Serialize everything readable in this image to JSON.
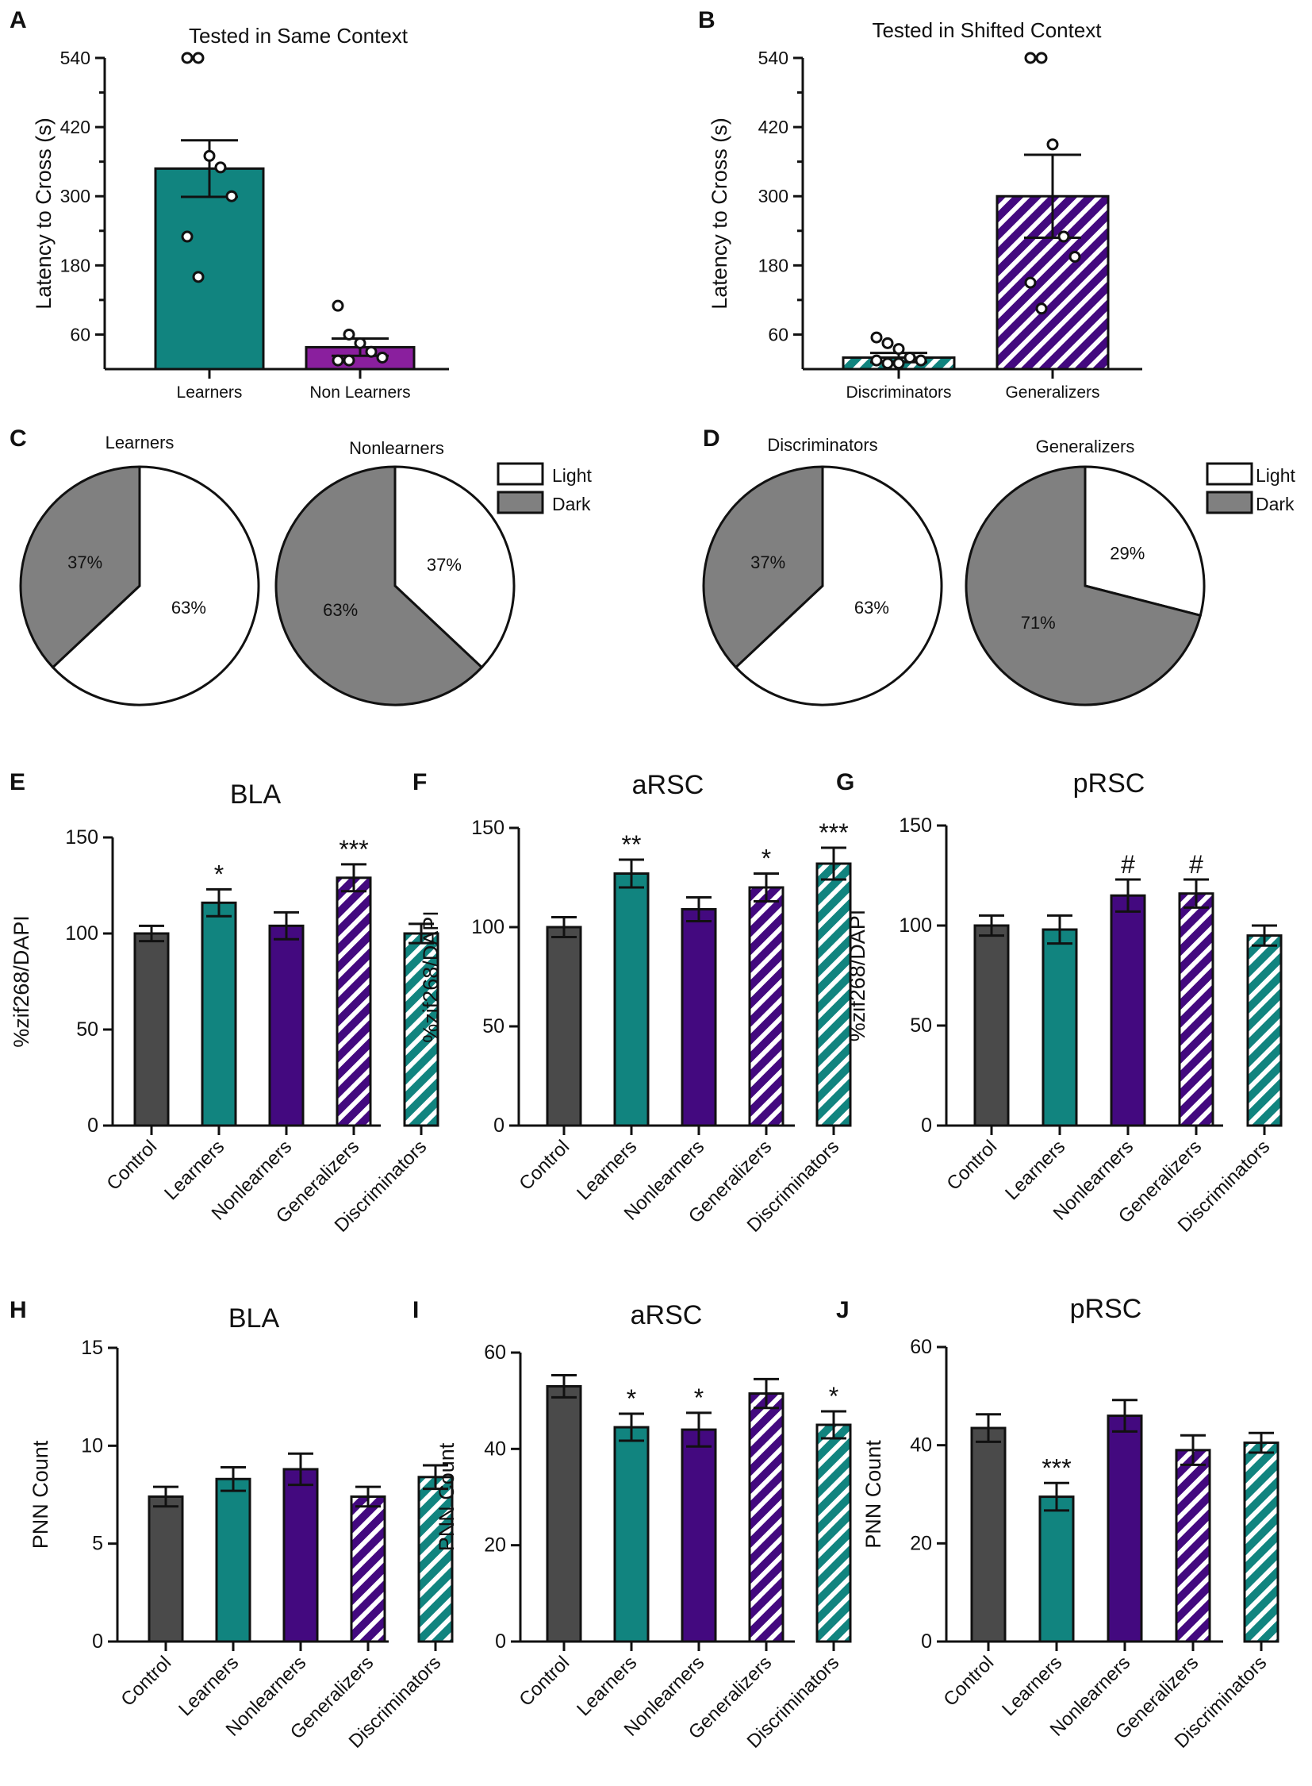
{
  "colors": {
    "control": "#4a4a4a",
    "teal": "#11847f",
    "purple": "#43097f",
    "purple_mid": "#8a1f9e",
    "dark_slice": "#808080",
    "light_slice": "#ffffff",
    "axis": "#111111"
  },
  "legend": {
    "light": "Light",
    "dark": "Dark"
  },
  "chart_data": [
    {
      "id": "A",
      "letter": "A",
      "type": "bar",
      "title": "Tested in Same Context",
      "ylabel": "Latency to Cross (s)",
      "xlabel": "",
      "ylim": [
        0,
        540
      ],
      "yticks": [
        60,
        180,
        300,
        420,
        540
      ],
      "categories": [
        "Learners",
        "Non Learners"
      ],
      "values": [
        348,
        38
      ],
      "errors": [
        49,
        15
      ],
      "styles": [
        "teal",
        "purple_mid"
      ],
      "points": [
        [
          540,
          540,
          370,
          350,
          300,
          230,
          160
        ],
        [
          110,
          60,
          45,
          30,
          20,
          15,
          15
        ]
      ]
    },
    {
      "id": "B",
      "letter": "B",
      "type": "bar",
      "title": "Tested in Shifted Context",
      "ylabel": "Latency to Cross (s)",
      "xlabel": "",
      "ylim": [
        0,
        540
      ],
      "yticks": [
        60,
        180,
        300,
        420,
        540
      ],
      "categories": [
        "Discriminators",
        "Generalizers"
      ],
      "values": [
        20,
        300
      ],
      "errors": [
        8,
        72
      ],
      "styles": [
        "teal_hatch",
        "purple_hatch"
      ],
      "points": [
        [
          55,
          45,
          35,
          20,
          15,
          15,
          10,
          10
        ],
        [
          540,
          540,
          390,
          230,
          195,
          150,
          105
        ]
      ]
    },
    {
      "id": "C",
      "letter": "C",
      "type": "pie",
      "pies": [
        {
          "label": "Learners",
          "dark": 37,
          "light": 63,
          "dark_text": "37%",
          "light_text": "63%"
        },
        {
          "label": "Nonlearners",
          "dark": 63,
          "light": 37,
          "dark_text": "63%",
          "light_text": "37%"
        }
      ]
    },
    {
      "id": "D",
      "letter": "D",
      "type": "pie",
      "pies": [
        {
          "label": "Discriminators",
          "dark": 37,
          "light": 63,
          "dark_text": "37%",
          "light_text": "63%"
        },
        {
          "label": "Generalizers",
          "dark": 71,
          "light": 29,
          "dark_text": "71%",
          "light_text": "29%"
        }
      ]
    },
    {
      "id": "E",
      "letter": "E",
      "type": "bar",
      "title": "BLA",
      "ylabel": "%zif268/DAPI",
      "xlabel": "",
      "ylim": [
        0,
        150
      ],
      "yticks": [
        0,
        50,
        100,
        150
      ],
      "categories": [
        "Control",
        "Learners",
        "Nonlearners",
        "Generalizers",
        "Discriminators"
      ],
      "values": [
        100,
        116,
        104,
        129,
        100
      ],
      "errors": [
        4,
        7,
        7,
        7,
        5
      ],
      "annotations": [
        "",
        "*",
        "",
        "***",
        ""
      ],
      "styles": [
        "control",
        "teal",
        "purple",
        "purple_hatch",
        "teal_hatch"
      ]
    },
    {
      "id": "F",
      "letter": "F",
      "type": "bar",
      "title": "aRSC",
      "ylabel": "%zif268/DAPI",
      "xlabel": "",
      "ylim": [
        0,
        150
      ],
      "yticks": [
        0,
        50,
        100,
        150
      ],
      "categories": [
        "Control",
        "Learners",
        "Nonlearners",
        "Generalizers",
        "Discriminators"
      ],
      "values": [
        100,
        127,
        109,
        120,
        132
      ],
      "errors": [
        5,
        7,
        6,
        7,
        8
      ],
      "annotations": [
        "",
        "**",
        "",
        "*",
        "***"
      ],
      "styles": [
        "control",
        "teal",
        "purple",
        "purple_hatch",
        "teal_hatch"
      ]
    },
    {
      "id": "G",
      "letter": "G",
      "type": "bar",
      "title": "pRSC",
      "ylabel": "%zif268/DAPI",
      "xlabel": "",
      "ylim": [
        0,
        150
      ],
      "yticks": [
        0,
        50,
        100,
        150
      ],
      "categories": [
        "Control",
        "Learners",
        "Nonlearners",
        "Generalizers",
        "Discriminators"
      ],
      "values": [
        100,
        98,
        115,
        116,
        95
      ],
      "errors": [
        5,
        7,
        8,
        7,
        5
      ],
      "annotations": [
        "",
        "",
        "#",
        "#",
        ""
      ],
      "styles": [
        "control",
        "teal",
        "purple",
        "purple_hatch",
        "teal_hatch"
      ]
    },
    {
      "id": "H",
      "letter": "H",
      "type": "bar",
      "title": "BLA",
      "ylabel": "PNN Count",
      "xlabel": "",
      "ylim": [
        0,
        15
      ],
      "yticks": [
        0,
        5,
        10,
        15
      ],
      "categories": [
        "Control",
        "Learners",
        "Nonlearners",
        "Generalizers",
        "Discriminators"
      ],
      "values": [
        7.4,
        8.3,
        8.8,
        7.4,
        8.4
      ],
      "errors": [
        0.5,
        0.6,
        0.8,
        0.5,
        0.6
      ],
      "annotations": [
        "",
        "",
        "",
        "",
        ""
      ],
      "styles": [
        "control",
        "teal",
        "purple",
        "purple_hatch",
        "teal_hatch"
      ]
    },
    {
      "id": "I",
      "letter": "I",
      "type": "bar",
      "title": "aRSC",
      "ylabel": "PNN Count",
      "xlabel": "",
      "ylim": [
        0,
        60
      ],
      "yticks": [
        0,
        20,
        40,
        60
      ],
      "categories": [
        "Control",
        "Learners",
        "Nonlearners",
        "Generalizers",
        "Discriminators"
      ],
      "values": [
        53,
        44.5,
        44,
        51.5,
        45
      ],
      "errors": [
        2.3,
        2.8,
        3.5,
        3,
        2.8
      ],
      "annotations": [
        "",
        "*",
        "*",
        "",
        "*"
      ],
      "styles": [
        "control",
        "teal",
        "purple",
        "purple_hatch",
        "teal_hatch"
      ]
    },
    {
      "id": "J",
      "letter": "J",
      "type": "bar",
      "title": "pRSC",
      "ylabel": "PNN Count",
      "xlabel": "",
      "ylim": [
        0,
        60
      ],
      "yticks": [
        0,
        20,
        40,
        60
      ],
      "categories": [
        "Control",
        "Learners",
        "Nonlearners",
        "Generalizers",
        "Discriminators"
      ],
      "values": [
        43.5,
        29.5,
        46,
        39,
        40.5
      ],
      "errors": [
        2.8,
        2.8,
        3.2,
        3,
        2
      ],
      "annotations": [
        "",
        "***",
        "",
        "",
        ""
      ],
      "styles": [
        "control",
        "teal",
        "purple",
        "purple_hatch",
        "teal_hatch"
      ]
    }
  ]
}
